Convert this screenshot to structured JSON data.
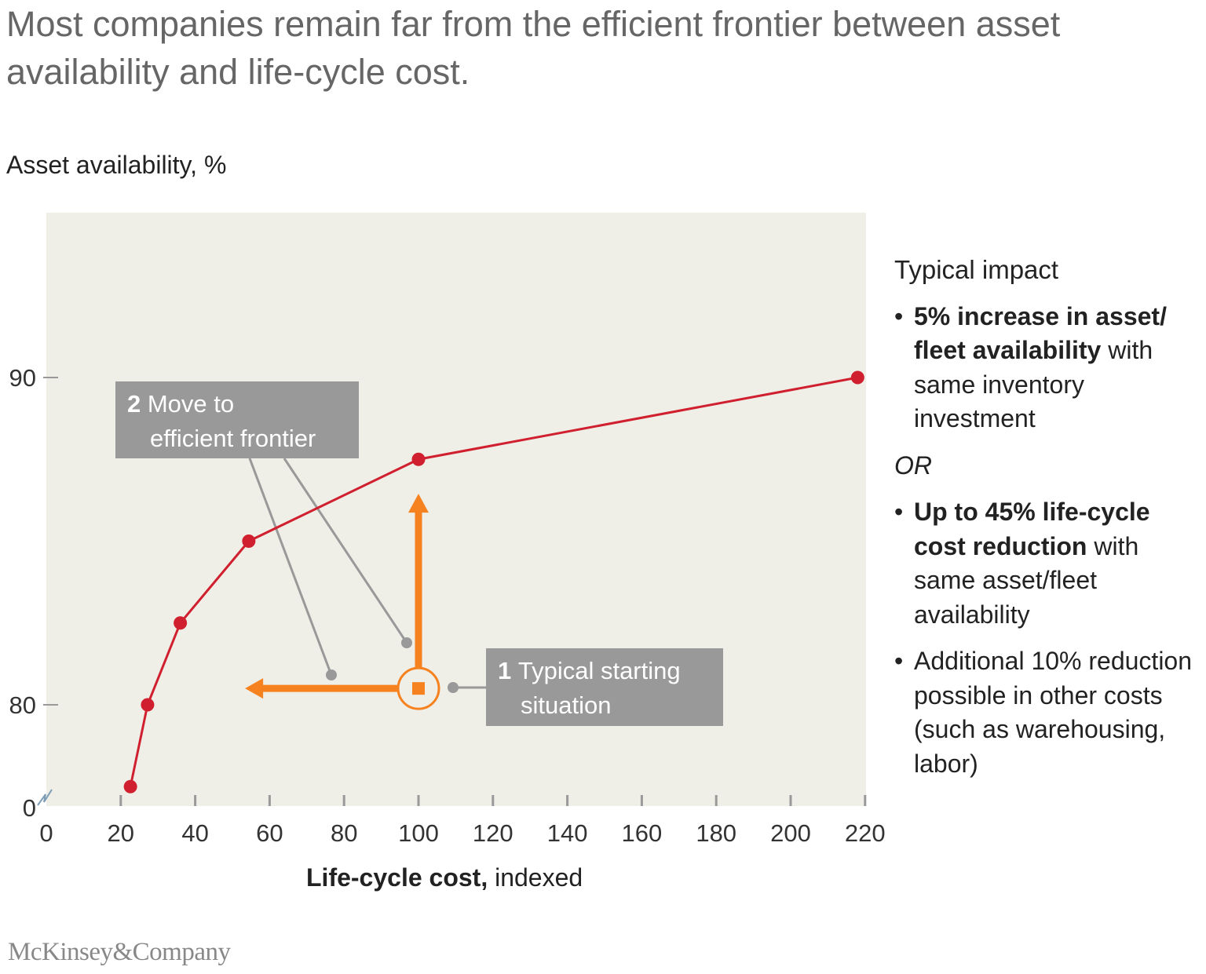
{
  "title": "Most companies remain far from the efficient frontier between asset availability and life-cycle cost.",
  "chart_data": {
    "type": "line",
    "ylabel": "Asset availability, %",
    "ylabel_bold": "Asset availability,",
    "ylabel_unit": " %",
    "xlabel_bold": "Life-cycle cost,",
    "xlabel_rest": " indexed",
    "x_ticks": [
      "0",
      "20",
      "40",
      "60",
      "80",
      "100",
      "120",
      "140",
      "160",
      "180",
      "200",
      "220"
    ],
    "y_ticks": [
      "90",
      "80",
      "0"
    ],
    "xlim": [
      0,
      220
    ],
    "ylim_note_axis_break": true,
    "ylim": [
      77,
      95
    ],
    "grid": false,
    "series": [
      {
        "x": [
          22.6,
          27.2,
          36,
          54.4,
          100,
          218
        ],
        "y": [
          77.5,
          80,
          82.5,
          85,
          87.5,
          90
        ],
        "color": "#d01f2e"
      }
    ],
    "starting_point": {
      "x": 100,
      "y": 80.5,
      "color": "#f5821f"
    },
    "arrows": [
      {
        "from": [
          100,
          80.5
        ],
        "to": [
          100,
          86.4
        ]
      },
      {
        "from": [
          100,
          80.5
        ],
        "to": [
          53.4,
          80.5
        ]
      }
    ],
    "annotations": [
      {
        "num": "2",
        "line1": "Move to",
        "line2": "efficient frontier"
      },
      {
        "num": "1",
        "line1": "Typical starting",
        "line2": "situation"
      }
    ],
    "plot_background": "#efeee7"
  },
  "impact": {
    "heading": "Typical impact",
    "b1_bold": "5% increase in asset/ fleet availability",
    "b1_rest": " with same inventory investment",
    "or": "OR",
    "b2_bold": "Up to 45% life-cycle cost reduction",
    "b2_rest": " with same asset/fleet availability",
    "b3": "Additional 10% reduction possible in other costs (such as warehousing, labor)"
  },
  "logo": "McKinsey&Company"
}
